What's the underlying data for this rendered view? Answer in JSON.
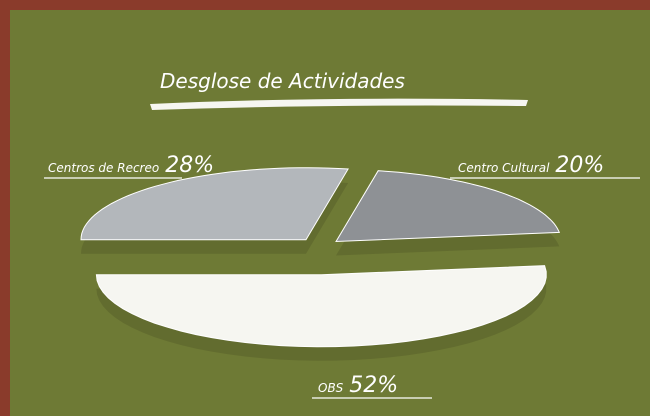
{
  "chart_data": {
    "type": "pie",
    "title": "Desglose de Actividades",
    "categories": [
      "Centros de Recreo",
      "Centro Cultural",
      "OBS"
    ],
    "values": [
      28,
      20,
      52
    ],
    "value_labels": [
      "28%",
      "20%",
      "52%"
    ],
    "colors": [
      "#b3b7bb",
      "#8e9195",
      "#f6f6f1"
    ]
  }
}
